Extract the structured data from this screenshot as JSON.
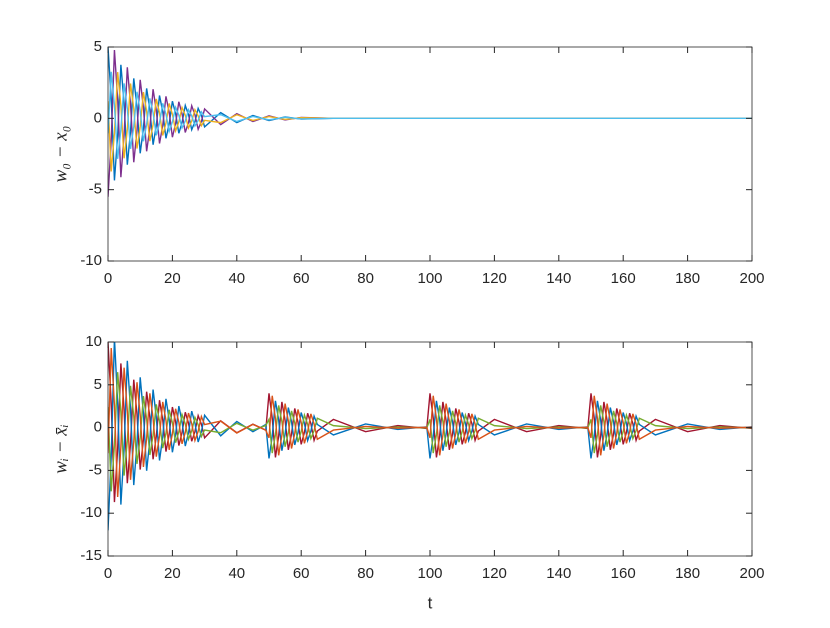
{
  "chart_data": [
    {
      "type": "line",
      "y_label": "w₀ − x₀",
      "x": [
        0,
        1,
        2,
        3,
        4,
        5,
        6,
        7,
        8,
        9,
        10,
        11,
        12,
        13,
        14,
        15,
        16,
        17,
        18,
        19,
        20,
        21,
        22,
        23,
        24,
        25,
        26,
        27,
        28,
        29,
        30,
        35,
        40,
        45,
        50,
        55,
        60,
        70,
        80,
        90,
        100,
        110,
        120,
        130,
        140,
        150,
        160,
        170,
        180,
        190,
        200
      ],
      "xlim": [
        0,
        200
      ],
      "xticks": [
        0,
        20,
        40,
        60,
        80,
        100,
        120,
        140,
        160,
        180,
        200
      ],
      "ylim": [
        -10,
        5
      ],
      "yticks": [
        -10,
        -5,
        0,
        5
      ],
      "series": [
        {
          "color": "#0072BD",
          "values": [
            5,
            1.4,
            -4.35,
            -1.22,
            3.75,
            1.05,
            -3.25,
            -0.92,
            2.8,
            0.8,
            -2.45,
            -0.69,
            2.1,
            0.6,
            -1.85,
            -0.51,
            1.6,
            0.45,
            -1.4,
            -0.39,
            1.2,
            0.33,
            -1.05,
            -0.29,
            0.9,
            0.26,
            -0.8,
            -0.23,
            0.7,
            0.2,
            -0.6,
            0.4,
            -0.3,
            0.2,
            -0.15,
            0.1,
            -0.05,
            0,
            0,
            0,
            0,
            0,
            0,
            0,
            0,
            0,
            0,
            0,
            0,
            0,
            0
          ]
        },
        {
          "color": "#7E2F8E",
          "values": [
            -5.5,
            -1.54,
            4.79,
            1.34,
            -4.13,
            -1.16,
            3.58,
            1.01,
            -3.08,
            -0.88,
            2.7,
            0.76,
            -2.31,
            -0.66,
            2.04,
            0.56,
            -1.76,
            -0.5,
            1.54,
            0.43,
            -1.32,
            -0.36,
            1.16,
            0.32,
            -0.99,
            -0.29,
            0.88,
            0.25,
            -0.77,
            -0.22,
            0.66,
            -0.44,
            0.33,
            -0.22,
            0.17,
            -0.11,
            0.06,
            0,
            0,
            0,
            0,
            0,
            0,
            0,
            0,
            0,
            0,
            0,
            0,
            0,
            0
          ]
        },
        {
          "color": "#EDB120",
          "values": [
            1.2,
            -3.72,
            -1.04,
            3.24,
            0.9,
            -2.8,
            -0.78,
            2.44,
            0.67,
            -2.12,
            -0.59,
            1.84,
            0.5,
            -1.6,
            -0.44,
            1.36,
            0.38,
            -1.2,
            -0.34,
            1.04,
            0.29,
            -0.88,
            -0.25,
            0.76,
            0.22,
            -0.68,
            -0.19,
            0.6,
            0.17,
            -0.52,
            -0.14,
            -0.3,
            0.25,
            -0.15,
            0.12,
            -0.08,
            0.04,
            0,
            0,
            0,
            0,
            0,
            0,
            0,
            0,
            0,
            0,
            0,
            0,
            0,
            0
          ]
        },
        {
          "color": "#4DBEEE",
          "values": [
            -1.05,
            3.26,
            0.91,
            -2.84,
            -0.79,
            2.45,
            0.68,
            -2.14,
            -0.59,
            1.86,
            0.52,
            -1.61,
            -0.44,
            1.4,
            0.39,
            -1.19,
            -0.33,
            1.05,
            0.3,
            -0.91,
            -0.25,
            0.77,
            0.22,
            -0.67,
            -0.19,
            0.6,
            0.17,
            -0.53,
            -0.15,
            0.46,
            0.12,
            0.26,
            -0.22,
            0.13,
            -0.1,
            0.07,
            -0.04,
            0,
            0,
            0,
            0,
            0,
            0,
            0,
            0,
            0,
            0,
            0,
            0,
            0,
            0
          ]
        }
      ]
    },
    {
      "type": "line",
      "y_label": "wᵢ − x̄ᵢ",
      "x_label": "t",
      "x": [
        0,
        1,
        2,
        3,
        4,
        5,
        6,
        7,
        8,
        9,
        10,
        11,
        12,
        13,
        14,
        15,
        16,
        17,
        18,
        19,
        20,
        21,
        22,
        23,
        24,
        25,
        26,
        27,
        28,
        29,
        30,
        35,
        40,
        45,
        49,
        50,
        51,
        52,
        53,
        54,
        55,
        56,
        57,
        58,
        59,
        60,
        61,
        62,
        63,
        64,
        65,
        70,
        80,
        90,
        99,
        100,
        101,
        102,
        103,
        104,
        105,
        106,
        107,
        108,
        109,
        110,
        111,
        112,
        113,
        114,
        115,
        120,
        130,
        140,
        149,
        150,
        151,
        152,
        153,
        154,
        155,
        156,
        157,
        158,
        159,
        160,
        161,
        162,
        163,
        164,
        165,
        170,
        180,
        190,
        200
      ],
      "xlim": [
        0,
        200
      ],
      "xticks": [
        0,
        20,
        40,
        60,
        80,
        100,
        120,
        140,
        160,
        180,
        200
      ],
      "ylim": [
        -15,
        10
      ],
      "yticks": [
        -15,
        -10,
        -5,
        0,
        5,
        10
      ],
      "series": [
        {
          "color": "#A2142F",
          "values": [
            10,
            2.8,
            -8.7,
            -2.44,
            7.5,
            2.1,
            -6.5,
            -1.84,
            5.6,
            1.6,
            -4.9,
            -1.38,
            4.2,
            1.2,
            -3.7,
            -1.02,
            3.2,
            0.9,
            -2.8,
            -0.78,
            2.4,
            0.66,
            -2.1,
            -0.58,
            1.8,
            0.52,
            -1.6,
            -0.46,
            1.4,
            0.4,
            -1.2,
            0.8,
            -0.6,
            0.4,
            -0.3,
            4,
            1.12,
            -3.48,
            -0.98,
            3,
            0.84,
            -2.6,
            -0.74,
            2.24,
            0.64,
            -1.96,
            -0.55,
            1.68,
            0.48,
            -1.48,
            -0.41,
            0.96,
            -0.48,
            0.24,
            -0.1,
            4,
            1.12,
            -3.48,
            -0.98,
            3,
            0.84,
            -2.6,
            -0.74,
            2.24,
            0.64,
            -1.96,
            -0.55,
            1.68,
            0.48,
            -1.48,
            -0.41,
            0.96,
            -0.48,
            0.24,
            -0.1,
            4,
            1.12,
            -3.48,
            -0.98,
            3,
            0.84,
            -2.6,
            -0.74,
            2.24,
            0.64,
            -1.96,
            -0.55,
            1.68,
            0.48,
            -1.48,
            -0.41,
            0.96,
            -0.48,
            0.24,
            -0.1
          ]
        },
        {
          "color": "#0072BD",
          "values": [
            -12,
            -3.36,
            10.44,
            2.93,
            -9,
            -2.52,
            7.8,
            2.21,
            -6.72,
            -1.92,
            5.88,
            1.66,
            -5.04,
            -1.44,
            4.44,
            1.22,
            -3.84,
            -1.08,
            3.36,
            0.94,
            -2.88,
            -0.79,
            2.52,
            0.7,
            -2.16,
            -0.62,
            1.92,
            0.55,
            -1.68,
            -0.48,
            1.44,
            -0.96,
            0.72,
            -0.48,
            0.36,
            -3.6,
            -1.01,
            3.13,
            0.88,
            -2.7,
            -0.76,
            2.34,
            0.67,
            -2.02,
            -0.58,
            1.76,
            0.5,
            -1.51,
            -0.43,
            1.33,
            0.37,
            -0.86,
            0.43,
            -0.22,
            0.09,
            -3.6,
            -1.01,
            3.13,
            0.88,
            -2.7,
            -0.76,
            2.34,
            0.67,
            -2.02,
            -0.58,
            1.76,
            0.5,
            -1.51,
            -0.43,
            1.33,
            0.37,
            -0.86,
            0.43,
            -0.22,
            0.09,
            -3.6,
            -1.01,
            3.13,
            0.88,
            -2.7,
            -0.76,
            2.34,
            0.67,
            -2.02,
            -0.58,
            1.76,
            0.5,
            -1.51,
            -0.43,
            1.33,
            0.37,
            -0.86,
            0.43,
            -0.22,
            0.09
          ]
        },
        {
          "color": "#77AC30",
          "values": [
            2.4,
            -7.44,
            -2.08,
            6.48,
            1.8,
            -5.6,
            -1.56,
            4.88,
            1.34,
            -4.24,
            -1.18,
            3.68,
            1,
            -3.2,
            -0.88,
            2.72,
            0.76,
            -2.4,
            -0.68,
            2.08,
            0.58,
            -1.76,
            -0.5,
            1.52,
            0.44,
            -1.36,
            -0.38,
            1.2,
            0.34,
            -1.04,
            -0.28,
            -0.6,
            0.5,
            -0.3,
            0.24,
            0.96,
            -2.98,
            -0.83,
            2.59,
            0.72,
            -2.24,
            -0.62,
            1.95,
            0.54,
            -1.7,
            -0.47,
            1.47,
            0.4,
            -1.28,
            -0.35,
            1.09,
            0.23,
            -0.11,
            0.06,
            -0.03,
            0.96,
            -2.98,
            -0.83,
            2.59,
            0.72,
            -2.24,
            -0.62,
            1.95,
            0.54,
            -1.7,
            -0.47,
            1.47,
            0.4,
            -1.28,
            -0.35,
            1.09,
            0.23,
            -0.11,
            0.06,
            -0.03,
            0.96,
            -2.98,
            -0.83,
            2.59,
            0.72,
            -2.24,
            -0.62,
            1.95,
            0.54,
            -1.7,
            -0.47,
            1.47,
            0.4,
            -1.28,
            -0.35,
            1.09,
            0.23,
            -0.11,
            0.06,
            -0.03
          ]
        },
        {
          "color": "#D95319",
          "values": [
            -3,
            9.3,
            2.6,
            -8.1,
            -2.25,
            7,
            1.95,
            -6.1,
            -1.68,
            5.3,
            1.48,
            -4.6,
            -1.25,
            4,
            1.1,
            -3.4,
            -0.95,
            3,
            0.85,
            -2.6,
            -0.73,
            2.2,
            0.63,
            -1.9,
            -0.55,
            1.7,
            0.48,
            -1.5,
            -0.43,
            1.3,
            0.35,
            0.75,
            -0.63,
            0.38,
            -0.3,
            -1.2,
            3.72,
            1.04,
            -3.24,
            -0.9,
            2.8,
            0.78,
            -2.44,
            -0.67,
            2.12,
            0.59,
            -1.84,
            -0.5,
            1.6,
            0.44,
            -1.36,
            -0.29,
            0.14,
            -0.07,
            0.04,
            -1.2,
            3.72,
            1.04,
            -3.24,
            -0.9,
            2.8,
            0.78,
            -2.44,
            -0.67,
            2.12,
            0.59,
            -1.84,
            -0.5,
            1.6,
            0.44,
            -1.36,
            -0.29,
            0.14,
            -0.07,
            0.04,
            -1.2,
            3.72,
            1.04,
            -3.24,
            -0.9,
            2.8,
            0.78,
            -2.44,
            -0.67,
            2.12,
            0.59,
            -1.84,
            -0.5,
            1.6,
            0.44,
            -1.36,
            -0.29,
            0.14,
            -0.07,
            0.04
          ]
        }
      ]
    }
  ]
}
